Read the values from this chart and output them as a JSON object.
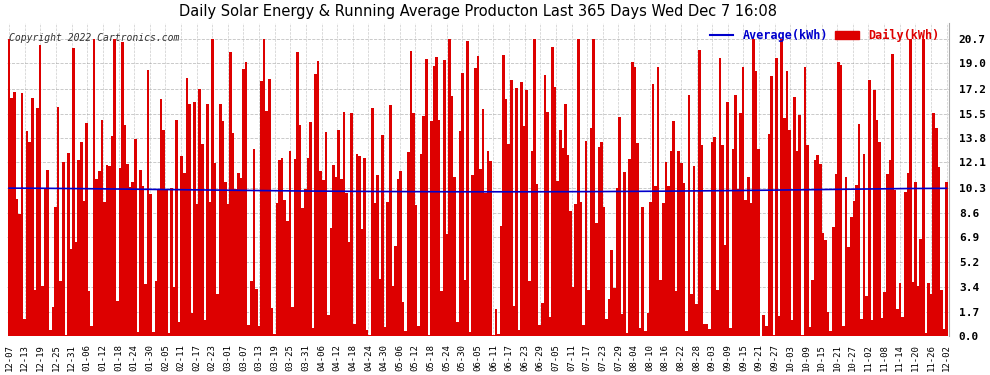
{
  "title": "Daily Solar Energy & Running Average Producton Last 365 Days Wed Dec 7 16:08",
  "copyright": "Copyright 2022 Cartronics.com",
  "legend_avg": "Average(kWh)",
  "legend_daily": "Daily(kWh)",
  "bar_color": "#dd0000",
  "avg_color": "#0000cc",
  "bg_color": "#ffffff",
  "plot_bg_color": "#ffffff",
  "grid_color": "#999999",
  "title_color": "#000000",
  "copyright_color": "#333333",
  "yticks": [
    0.0,
    1.7,
    3.4,
    5.2,
    6.9,
    8.6,
    10.3,
    12.1,
    13.8,
    15.5,
    17.2,
    19.0,
    20.7
  ],
  "ylim": [
    0.0,
    21.8
  ],
  "num_days": 365,
  "avg_flat": 10.3,
  "xtick_labels": [
    "12-07",
    "12-13",
    "12-19",
    "12-25",
    "12-31",
    "01-06",
    "01-12",
    "01-18",
    "01-24",
    "01-30",
    "02-05",
    "02-11",
    "02-17",
    "02-23",
    "03-01",
    "03-07",
    "03-13",
    "03-19",
    "03-25",
    "03-31",
    "04-06",
    "04-12",
    "04-18",
    "04-24",
    "04-30",
    "05-06",
    "05-12",
    "05-18",
    "05-24",
    "05-30",
    "06-05",
    "06-11",
    "06-17",
    "06-23",
    "06-29",
    "07-05",
    "07-11",
    "07-17",
    "07-23",
    "07-29",
    "08-04",
    "08-10",
    "08-16",
    "08-22",
    "08-28",
    "09-03",
    "09-09",
    "09-15",
    "09-21",
    "09-27",
    "10-03",
    "10-09",
    "10-15",
    "10-21",
    "10-27",
    "11-02",
    "11-08",
    "11-14",
    "11-20",
    "11-26",
    "12-02"
  ]
}
